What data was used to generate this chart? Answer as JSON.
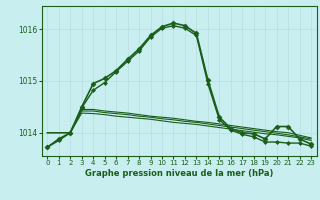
{
  "xlabel": "Graphe pression niveau de la mer (hPa)",
  "background_color": "#c8eef0",
  "grid_color": "#b8dede",
  "line_color": "#1a5e1a",
  "text_color": "#1a5e1a",
  "ylim": [
    1013.55,
    1016.45
  ],
  "xlim": [
    -0.5,
    23.5
  ],
  "yticks": [
    1014,
    1015,
    1016
  ],
  "xticks": [
    0,
    1,
    2,
    3,
    4,
    5,
    6,
    7,
    8,
    9,
    10,
    11,
    12,
    13,
    14,
    15,
    16,
    17,
    18,
    19,
    20,
    21,
    22,
    23
  ],
  "series": [
    {
      "x": [
        0,
        1,
        2,
        3,
        4,
        5,
        6,
        7,
        8,
        9,
        10,
        11,
        12,
        13,
        14,
        15,
        16,
        17,
        18,
        19,
        20,
        21,
        22,
        23
      ],
      "y": [
        1013.72,
        1013.88,
        1014.0,
        1014.5,
        1014.95,
        1015.05,
        1015.2,
        1015.42,
        1015.62,
        1015.88,
        1016.05,
        1016.12,
        1016.07,
        1015.92,
        1015.02,
        1014.3,
        1014.08,
        1014.0,
        1013.98,
        1013.88,
        1014.12,
        1014.12,
        1013.88,
        1013.78
      ],
      "marker": "D",
      "markersize": 2.5,
      "linewidth": 1.2,
      "zorder": 5
    },
    {
      "x": [
        0,
        1,
        2,
        3,
        4,
        5,
        6,
        7,
        8,
        9,
        10,
        11,
        12,
        13,
        14,
        15,
        16,
        17,
        18,
        19,
        20,
        21,
        22,
        23
      ],
      "y": [
        1013.72,
        1013.85,
        1014.0,
        1014.48,
        1014.82,
        1014.97,
        1015.18,
        1015.38,
        1015.58,
        1015.85,
        1016.02,
        1016.07,
        1016.02,
        1015.88,
        1014.95,
        1014.25,
        1014.05,
        1013.97,
        1013.92,
        1013.82,
        1013.82,
        1013.8,
        1013.8,
        1013.74
      ],
      "marker": "D",
      "markersize": 2.0,
      "linewidth": 1.0,
      "zorder": 4
    },
    {
      "x": [
        0,
        1,
        2,
        3,
        4,
        5,
        6,
        7,
        8,
        9,
        10,
        11,
        12,
        13,
        14,
        15,
        16,
        17,
        18,
        19,
        20,
        21,
        22,
        23
      ],
      "y": [
        1014.0,
        1014.0,
        1014.0,
        1014.45,
        1014.45,
        1014.42,
        1014.4,
        1014.38,
        1014.35,
        1014.32,
        1014.3,
        1014.28,
        1014.25,
        1014.22,
        1014.2,
        1014.17,
        1014.14,
        1014.11,
        1014.08,
        1014.05,
        1014.02,
        1014.0,
        1013.95,
        1013.9
      ],
      "marker": null,
      "markersize": 0,
      "linewidth": 0.8,
      "zorder": 3
    },
    {
      "x": [
        0,
        1,
        2,
        3,
        4,
        5,
        6,
        7,
        8,
        9,
        10,
        11,
        12,
        13,
        14,
        15,
        16,
        17,
        18,
        19,
        20,
        21,
        22,
        23
      ],
      "y": [
        1014.0,
        1014.0,
        1014.0,
        1014.42,
        1014.42,
        1014.39,
        1014.37,
        1014.35,
        1014.32,
        1014.3,
        1014.27,
        1014.25,
        1014.22,
        1014.2,
        1014.17,
        1014.14,
        1014.11,
        1014.08,
        1014.05,
        1014.02,
        1013.99,
        1013.96,
        1013.92,
        1013.88
      ],
      "marker": null,
      "markersize": 0,
      "linewidth": 0.8,
      "zorder": 3
    },
    {
      "x": [
        0,
        1,
        2,
        3,
        4,
        5,
        6,
        7,
        8,
        9,
        10,
        11,
        12,
        13,
        14,
        15,
        16,
        17,
        18,
        19,
        20,
        21,
        22,
        23
      ],
      "y": [
        1014.0,
        1014.0,
        1014.0,
        1014.38,
        1014.37,
        1014.35,
        1014.32,
        1014.3,
        1014.28,
        1014.26,
        1014.23,
        1014.2,
        1014.18,
        1014.16,
        1014.13,
        1014.1,
        1014.07,
        1014.04,
        1014.01,
        1013.98,
        1013.96,
        1013.93,
        1013.9,
        1013.85
      ],
      "marker": null,
      "markersize": 0,
      "linewidth": 0.8,
      "zorder": 3
    }
  ]
}
